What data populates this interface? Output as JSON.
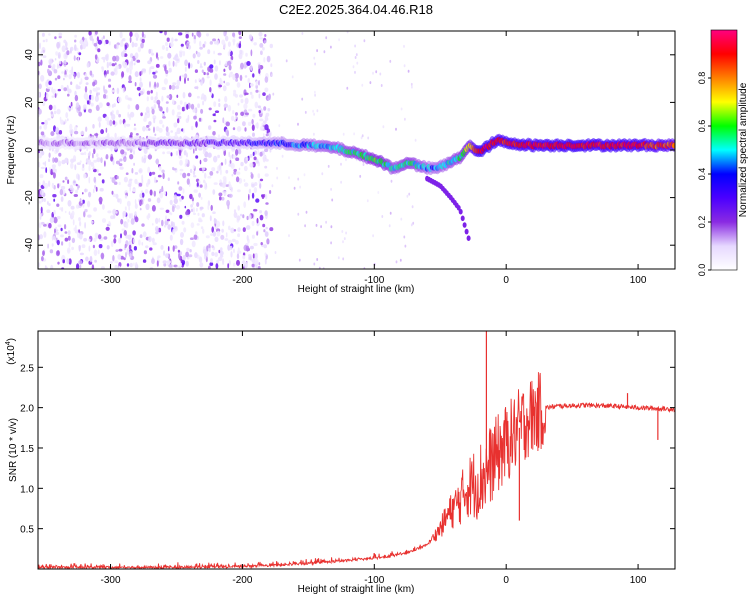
{
  "figure": {
    "title": "C2E2.2025.364.04.46.R18"
  },
  "chart_data": [
    {
      "type": "heatmap",
      "name": "spectrogram",
      "xlabel": "Height of straight line (km)",
      "ylabel": "Frequency (Hz)",
      "xlim": [
        -355,
        128
      ],
      "ylim": [
        -50,
        50
      ],
      "x_ticks": [
        -300,
        -200,
        -100,
        0,
        100
      ],
      "y_ticks": [
        -40,
        -20,
        0,
        20,
        40
      ],
      "colorbar": {
        "label": "Normalized spectral amplitude",
        "range": [
          0,
          1
        ],
        "ticks": [
          "0.0",
          "0.2",
          "0.4",
          "0.6",
          "0.8"
        ],
        "colors": [
          "#ffffff",
          "#e6d8ff",
          "#8a2be2",
          "#4b00ff",
          "#0000ff",
          "#00ffff",
          "#00ff00",
          "#ffff00",
          "#ff8000",
          "#ff0000",
          "#ff0080"
        ]
      },
      "ridge": {
        "x": [
          -355,
          -300,
          -250,
          -200,
          -180,
          -150,
          -130,
          -110,
          -95,
          -85,
          -75,
          -65,
          -55,
          -45,
          -35,
          -28,
          -22,
          -15,
          -10,
          -5,
          0,
          20,
          50,
          80,
          100,
          128
        ],
        "freq": [
          3,
          3,
          3,
          3,
          3,
          2,
          1,
          -2,
          -5,
          -8,
          -5,
          -7,
          -8,
          -6,
          -3,
          2,
          -1,
          1,
          3,
          4,
          3,
          2,
          2,
          2,
          2,
          2
        ],
        "amplitude": [
          0.15,
          0.18,
          0.22,
          0.3,
          0.35,
          0.45,
          0.5,
          0.55,
          0.6,
          0.5,
          0.55,
          0.5,
          0.45,
          0.5,
          0.55,
          0.7,
          0.9,
          0.95,
          0.9,
          0.85,
          0.9,
          0.9,
          0.92,
          0.9,
          0.9,
          0.8
        ]
      },
      "branch": {
        "x": [
          -60,
          -50,
          -42,
          -35,
          -28
        ],
        "freq": [
          -12,
          -15,
          -20,
          -25,
          -38
        ]
      }
    },
    {
      "type": "line",
      "name": "snr",
      "xlabel": "Height of straight line (km)",
      "ylabel": "SNR (10 * v/v)",
      "y_multiplier": "(x10",
      "y_multiplier_exp": "4",
      "y_multiplier_close": ")",
      "xlim": [
        -355,
        128
      ],
      "ylim": [
        0,
        2.95
      ],
      "x_ticks": [
        -300,
        -200,
        -100,
        0,
        100
      ],
      "y_ticks": [
        0.5,
        1.0,
        1.5,
        2.0,
        2.5
      ],
      "y_tick_labels": [
        "0.5",
        "1.0",
        "1.5",
        "2.0",
        "2.5"
      ],
      "color": "#e8312f",
      "envelope": {
        "x": [
          -355,
          -250,
          -200,
          -170,
          -140,
          -110,
          -90,
          -75,
          -60,
          -50,
          -45,
          -40,
          -35,
          -30,
          -25,
          -20,
          -15,
          -10,
          -5,
          0,
          5,
          10,
          15,
          20,
          30,
          40,
          60,
          80,
          100,
          128
        ],
        "y": [
          0.02,
          0.02,
          0.03,
          0.05,
          0.08,
          0.12,
          0.15,
          0.2,
          0.3,
          0.5,
          0.65,
          0.75,
          0.85,
          1.0,
          1.05,
          1.1,
          1.2,
          1.35,
          1.45,
          1.55,
          1.65,
          1.75,
          1.85,
          1.9,
          2.0,
          2.02,
          2.03,
          2.02,
          2.0,
          1.98
        ]
      },
      "spikes": [
        {
          "x": -15,
          "y": 2.95
        },
        {
          "x": 10,
          "y": 0.6
        },
        {
          "x": 92,
          "y": 2.18
        },
        {
          "x": 115,
          "y": 1.6
        }
      ]
    }
  ]
}
